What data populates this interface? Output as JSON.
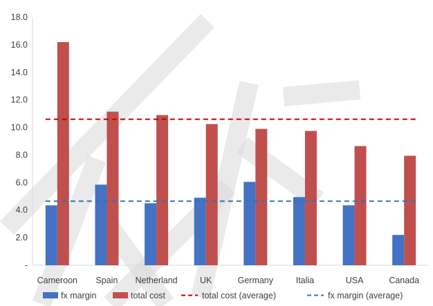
{
  "chart_data": {
    "type": "bar",
    "categories": [
      "Cameroon",
      "Spain",
      "Netherland",
      "UK",
      "Germany",
      "Italia",
      "USA",
      "Canada"
    ],
    "series": [
      {
        "name": "fx margin",
        "values": [
          4.35,
          5.85,
          4.5,
          4.9,
          6.05,
          4.95,
          4.35,
          2.2
        ],
        "color": "#4472C4"
      },
      {
        "name": "total cost",
        "values": [
          16.2,
          11.15,
          10.9,
          10.25,
          9.9,
          9.75,
          8.65,
          7.95
        ],
        "color": "#C0504D"
      }
    ],
    "averages": [
      {
        "name": "total cost (average)",
        "value": 10.6,
        "color": "#C00000"
      },
      {
        "name": "fx margin (average)",
        "value": 4.65,
        "color": "#2E75B6"
      }
    ],
    "y_ticks": [
      "-",
      "2.0",
      "4.0",
      "6.0",
      "8.0",
      "10.0",
      "12.0",
      "14.0",
      "16.0",
      "18.0"
    ],
    "ylim": [
      0,
      18
    ],
    "grid": false,
    "legend_position": "bottom",
    "title": "",
    "xlabel": "",
    "ylabel": ""
  }
}
